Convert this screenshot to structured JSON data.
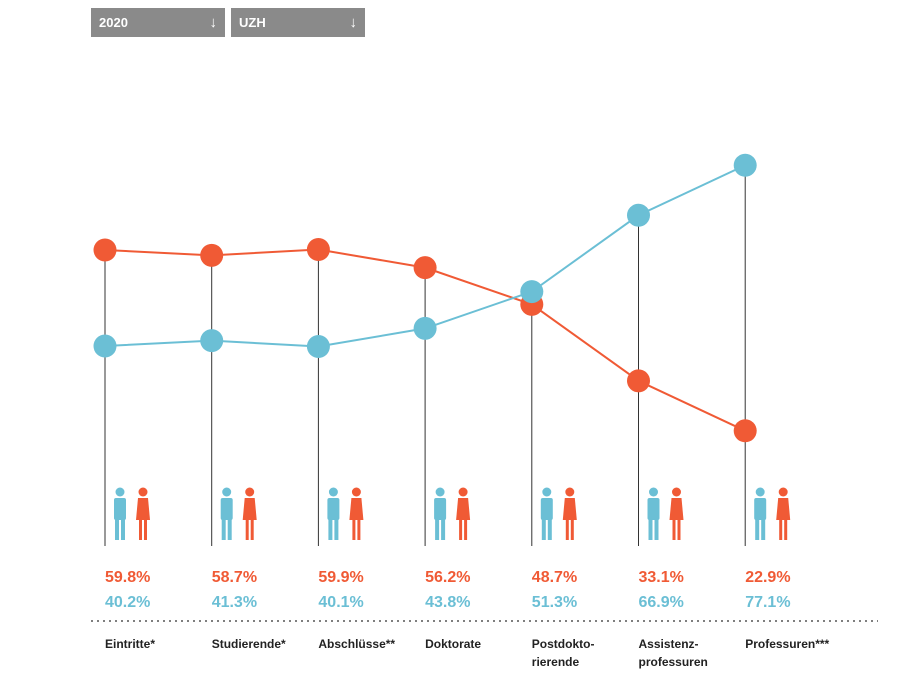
{
  "filters": {
    "year": {
      "value": "2020",
      "icon": "arrow-down-icon"
    },
    "institution": {
      "value": "UZH",
      "icon": "arrow-down-icon"
    }
  },
  "colors": {
    "women": "#f05a35",
    "men": "#6bbfd5",
    "stem": "#333333"
  },
  "chart_data": {
    "type": "line",
    "ylim": [
      0,
      100
    ],
    "categories": [
      [
        "Eintritte*"
      ],
      [
        "Studierende*"
      ],
      [
        "Abschlüsse**"
      ],
      [
        "Doktorate"
      ],
      [
        "Postdokto-",
        "rierende"
      ],
      [
        "Assistenz-",
        "professuren"
      ],
      [
        "Professuren***"
      ]
    ],
    "series": [
      {
        "key": "women",
        "color": "#f05a35",
        "values": [
          59.8,
          58.7,
          59.9,
          56.2,
          48.7,
          33.1,
          22.9
        ],
        "labels": [
          "59.8%",
          "58.7%",
          "59.9%",
          "56.2%",
          "48.7%",
          "33.1%",
          "22.9%"
        ]
      },
      {
        "key": "men",
        "color": "#6bbfd5",
        "values": [
          40.2,
          41.3,
          40.1,
          43.8,
          51.3,
          66.9,
          77.1
        ],
        "labels": [
          "40.2%",
          "41.3%",
          "40.1%",
          "43.8%",
          "51.3%",
          "66.9%",
          "77.1%"
        ]
      }
    ]
  }
}
